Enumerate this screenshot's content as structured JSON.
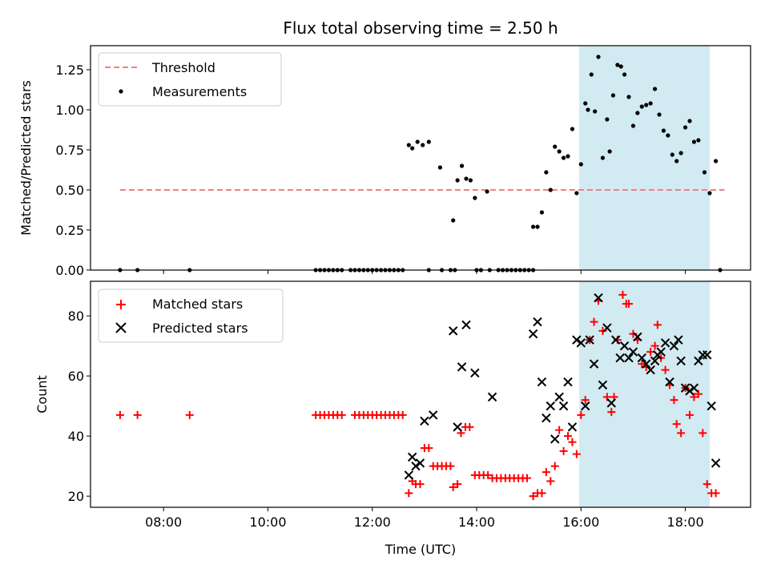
{
  "chart_data": [
    {
      "type": "scatter",
      "title": "Flux total observing time = 2.50 h",
      "xlabel": "",
      "ylabel": "Matched/Predicted stars",
      "xlim": [
        "06:36",
        "19:15"
      ],
      "ylim": [
        0,
        1.4
      ],
      "yticks": [
        0.0,
        0.25,
        0.5,
        0.75,
        1.0,
        1.25
      ],
      "ytick_labels": [
        "0.00",
        "0.25",
        "0.50",
        "0.75",
        "1.00",
        "1.25"
      ],
      "highlight_span": {
        "x": [
          "15:58",
          "18:28"
        ],
        "color": "#add8e6"
      },
      "legend": {
        "placement": "top-left",
        "entries": [
          "Threshold",
          "Measurements"
        ]
      },
      "threshold": {
        "name": "Threshold",
        "y": 0.5,
        "x": [
          "07:10",
          "18:45"
        ],
        "color": "#f08080",
        "style": "dashed"
      },
      "series": [
        {
          "name": "Measurements",
          "marker": "dot",
          "color": "#000000",
          "points": [
            [
              "07:10",
              0
            ],
            [
              "07:30",
              0
            ],
            [
              "08:30",
              0
            ],
            [
              "10:55",
              0
            ],
            [
              "11:00",
              0
            ],
            [
              "11:05",
              0
            ],
            [
              "11:10",
              0
            ],
            [
              "11:15",
              0
            ],
            [
              "11:20",
              0
            ],
            [
              "11:25",
              0
            ],
            [
              "11:35",
              0
            ],
            [
              "11:40",
              0
            ],
            [
              "11:45",
              0
            ],
            [
              "11:50",
              0
            ],
            [
              "11:55",
              0
            ],
            [
              "12:00",
              0
            ],
            [
              "12:05",
              0
            ],
            [
              "12:10",
              0
            ],
            [
              "12:15",
              0
            ],
            [
              "12:20",
              0
            ],
            [
              "12:25",
              0
            ],
            [
              "12:30",
              0
            ],
            [
              "12:35",
              0
            ],
            [
              "12:42",
              0.78
            ],
            [
              "12:46",
              0.76
            ],
            [
              "12:52",
              0.8
            ],
            [
              "12:58",
              0.78
            ],
            [
              "13:05",
              0.8
            ],
            [
              "13:18",
              0.64
            ],
            [
              "13:05",
              0
            ],
            [
              "13:20",
              0
            ],
            [
              "13:30",
              0
            ],
            [
              "13:35",
              0
            ],
            [
              "13:33",
              0.31
            ],
            [
              "13:38",
              0.56
            ],
            [
              "13:43",
              0.65
            ],
            [
              "13:48",
              0.57
            ],
            [
              "13:53",
              0.56
            ],
            [
              "13:58",
              0.45
            ],
            [
              "14:12",
              0.49
            ],
            [
              "14:00",
              0
            ],
            [
              "14:05",
              0
            ],
            [
              "14:15",
              0
            ],
            [
              "14:25",
              0
            ],
            [
              "14:30",
              0
            ],
            [
              "14:35",
              0
            ],
            [
              "14:40",
              0
            ],
            [
              "14:45",
              0
            ],
            [
              "14:50",
              0
            ],
            [
              "14:55",
              0
            ],
            [
              "15:00",
              0
            ],
            [
              "15:05",
              0
            ],
            [
              "15:05",
              0.27
            ],
            [
              "15:10",
              0.27
            ],
            [
              "15:15",
              0.36
            ],
            [
              "15:20",
              0.61
            ],
            [
              "15:25",
              0.5
            ],
            [
              "15:30",
              0.77
            ],
            [
              "15:35",
              0.74
            ],
            [
              "15:40",
              0.7
            ],
            [
              "15:45",
              0.71
            ],
            [
              "15:50",
              0.88
            ],
            [
              "15:55",
              0.48
            ],
            [
              "16:00",
              0.66
            ],
            [
              "16:05",
              1.04
            ],
            [
              "16:08",
              1.0
            ],
            [
              "16:12",
              1.22
            ],
            [
              "16:16",
              0.99
            ],
            [
              "16:20",
              1.33
            ],
            [
              "16:25",
              0.7
            ],
            [
              "16:30",
              0.94
            ],
            [
              "16:33",
              0.74
            ],
            [
              "16:37",
              1.09
            ],
            [
              "16:42",
              1.28
            ],
            [
              "16:46",
              1.27
            ],
            [
              "16:50",
              1.22
            ],
            [
              "16:55",
              1.08
            ],
            [
              "17:00",
              0.9
            ],
            [
              "17:05",
              0.98
            ],
            [
              "17:10",
              1.02
            ],
            [
              "17:15",
              1.03
            ],
            [
              "17:20",
              1.04
            ],
            [
              "17:25",
              1.13
            ],
            [
              "17:30",
              0.97
            ],
            [
              "17:35",
              0.87
            ],
            [
              "17:40",
              0.84
            ],
            [
              "17:45",
              0.72
            ],
            [
              "17:50",
              0.68
            ],
            [
              "17:55",
              0.73
            ],
            [
              "18:00",
              0.89
            ],
            [
              "18:05",
              0.93
            ],
            [
              "18:10",
              0.8
            ],
            [
              "18:15",
              0.81
            ],
            [
              "18:22",
              0.61
            ],
            [
              "18:28",
              0.48
            ],
            [
              "18:35",
              0.68
            ],
            [
              "18:40",
              0
            ]
          ]
        }
      ]
    },
    {
      "type": "scatter",
      "title": "",
      "xlabel": "Time (UTC)",
      "ylabel": "Count",
      "xlim": [
        "06:36",
        "19:15"
      ],
      "ylim": [
        16.3,
        91.5
      ],
      "yticks": [
        20,
        40,
        60,
        80
      ],
      "ytick_labels": [
        "20",
        "40",
        "60",
        "80"
      ],
      "xticks": [
        "08:00",
        "10:00",
        "12:00",
        "14:00",
        "16:00",
        "18:00"
      ],
      "xtick_labels": [
        "08:00",
        "10:00",
        "12:00",
        "14:00",
        "16:00",
        "18:00"
      ],
      "highlight_span": {
        "x": [
          "15:58",
          "18:28"
        ],
        "color": "#add8e6"
      },
      "legend": {
        "placement": "top-left",
        "entries": [
          "Matched stars",
          "Predicted stars"
        ]
      },
      "series": [
        {
          "name": "Matched stars",
          "marker": "plus",
          "color": "#ff0000",
          "points": [
            [
              "07:10",
              47
            ],
            [
              "07:30",
              47
            ],
            [
              "08:30",
              47
            ],
            [
              "10:55",
              47
            ],
            [
              "11:00",
              47
            ],
            [
              "11:05",
              47
            ],
            [
              "11:10",
              47
            ],
            [
              "11:15",
              47
            ],
            [
              "11:20",
              47
            ],
            [
              "11:25",
              47
            ],
            [
              "11:40",
              47
            ],
            [
              "11:45",
              47
            ],
            [
              "11:50",
              47
            ],
            [
              "11:55",
              47
            ],
            [
              "12:00",
              47
            ],
            [
              "12:05",
              47
            ],
            [
              "12:10",
              47
            ],
            [
              "12:15",
              47
            ],
            [
              "12:20",
              47
            ],
            [
              "12:25",
              47
            ],
            [
              "12:30",
              47
            ],
            [
              "12:35",
              47
            ],
            [
              "12:42",
              21
            ],
            [
              "12:46",
              25
            ],
            [
              "12:50",
              24
            ],
            [
              "12:55",
              24
            ],
            [
              "13:00",
              36
            ],
            [
              "13:05",
              36
            ],
            [
              "13:10",
              30
            ],
            [
              "13:15",
              30
            ],
            [
              "13:20",
              30
            ],
            [
              "13:25",
              30
            ],
            [
              "13:30",
              30
            ],
            [
              "13:33",
              23
            ],
            [
              "13:38",
              24
            ],
            [
              "13:42",
              41
            ],
            [
              "13:47",
              43
            ],
            [
              "13:52",
              43
            ],
            [
              "13:58",
              27
            ],
            [
              "14:03",
              27
            ],
            [
              "14:08",
              27
            ],
            [
              "14:13",
              27
            ],
            [
              "14:18",
              26
            ],
            [
              "14:23",
              26
            ],
            [
              "14:28",
              26
            ],
            [
              "14:33",
              26
            ],
            [
              "14:38",
              26
            ],
            [
              "14:43",
              26
            ],
            [
              "14:48",
              26
            ],
            [
              "14:53",
              26
            ],
            [
              "14:58",
              26
            ],
            [
              "15:05",
              20
            ],
            [
              "15:10",
              21
            ],
            [
              "15:15",
              21
            ],
            [
              "15:20",
              28
            ],
            [
              "15:25",
              25
            ],
            [
              "15:30",
              30
            ],
            [
              "15:35",
              42
            ],
            [
              "15:40",
              35
            ],
            [
              "15:45",
              40
            ],
            [
              "15:50",
              38
            ],
            [
              "15:55",
              34
            ],
            [
              "16:00",
              47
            ],
            [
              "16:05",
              52
            ],
            [
              "16:10",
              72
            ],
            [
              "16:15",
              78
            ],
            [
              "16:20",
              85
            ],
            [
              "16:25",
              75
            ],
            [
              "16:30",
              53
            ],
            [
              "16:35",
              48
            ],
            [
              "16:38",
              53
            ],
            [
              "16:42",
              72
            ],
            [
              "16:48",
              87
            ],
            [
              "16:52",
              84
            ],
            [
              "16:55",
              84
            ],
            [
              "17:00",
              74
            ],
            [
              "17:05",
              72
            ],
            [
              "17:10",
              64
            ],
            [
              "17:15",
              63
            ],
            [
              "17:20",
              68
            ],
            [
              "17:25",
              70
            ],
            [
              "17:28",
              77
            ],
            [
              "17:32",
              66
            ],
            [
              "17:37",
              62
            ],
            [
              "17:42",
              57
            ],
            [
              "17:47",
              52
            ],
            [
              "17:50",
              44
            ],
            [
              "17:55",
              41
            ],
            [
              "18:00",
              56
            ],
            [
              "18:05",
              47
            ],
            [
              "18:10",
              53
            ],
            [
              "18:15",
              54
            ],
            [
              "18:20",
              41
            ],
            [
              "18:25",
              24
            ],
            [
              "18:30",
              21
            ],
            [
              "18:35",
              21
            ]
          ]
        },
        {
          "name": "Predicted stars",
          "marker": "x",
          "color": "#000000",
          "points": [
            [
              "12:42",
              27
            ],
            [
              "12:46",
              33
            ],
            [
              "12:50",
              30
            ],
            [
              "12:55",
              31
            ],
            [
              "13:00",
              45
            ],
            [
              "13:10",
              47
            ],
            [
              "13:33",
              75
            ],
            [
              "13:38",
              43
            ],
            [
              "13:43",
              63
            ],
            [
              "13:48",
              77
            ],
            [
              "13:58",
              61
            ],
            [
              "14:18",
              53
            ],
            [
              "15:05",
              74
            ],
            [
              "15:10",
              78
            ],
            [
              "15:15",
              58
            ],
            [
              "15:20",
              46
            ],
            [
              "15:25",
              50
            ],
            [
              "15:30",
              39
            ],
            [
              "15:35",
              53
            ],
            [
              "15:40",
              50
            ],
            [
              "15:45",
              58
            ],
            [
              "15:50",
              43
            ],
            [
              "15:55",
              72
            ],
            [
              "16:00",
              71
            ],
            [
              "16:05",
              50
            ],
            [
              "16:10",
              72
            ],
            [
              "16:15",
              64
            ],
            [
              "16:20",
              86
            ],
            [
              "16:25",
              57
            ],
            [
              "16:30",
              76
            ],
            [
              "16:35",
              51
            ],
            [
              "16:40",
              72
            ],
            [
              "16:45",
              66
            ],
            [
              "16:50",
              70
            ],
            [
              "16:55",
              66
            ],
            [
              "17:00",
              68
            ],
            [
              "17:05",
              73
            ],
            [
              "17:10",
              66
            ],
            [
              "17:15",
              64
            ],
            [
              "17:20",
              62
            ],
            [
              "17:25",
              65
            ],
            [
              "17:28",
              67
            ],
            [
              "17:32",
              68
            ],
            [
              "17:37",
              71
            ],
            [
              "17:42",
              58
            ],
            [
              "17:47",
              70
            ],
            [
              "17:52",
              72
            ],
            [
              "17:55",
              65
            ],
            [
              "18:00",
              56
            ],
            [
              "18:05",
              55
            ],
            [
              "18:10",
              56
            ],
            [
              "18:15",
              65
            ],
            [
              "18:20",
              67
            ],
            [
              "18:25",
              67
            ],
            [
              "18:30",
              50
            ],
            [
              "18:35",
              31
            ]
          ]
        }
      ]
    }
  ]
}
